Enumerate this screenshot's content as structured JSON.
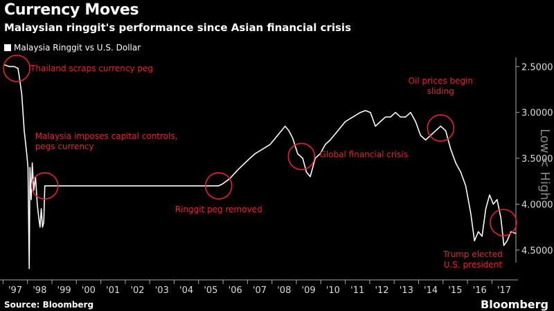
{
  "header": {
    "title": "Currency Moves",
    "subtitle": "Malaysian ringgit's performance since Asian financial crisis"
  },
  "footer": {
    "source": "Source: Bloomberg",
    "brand": "Bloomberg"
  },
  "colors": {
    "line": "#ffffff",
    "annotation": "#e8202f",
    "background": "#000000"
  },
  "chart_data": {
    "type": "line",
    "title": "Currency Moves",
    "subtitle": "Malaysian ringgit's performance since Asian financial crisis",
    "ylabel": "Low < High",
    "y_inverted": true,
    "ylim": [
      4.75,
      2.4
    ],
    "xlim": [
      1997.0,
      2017.4
    ],
    "yticks": [
      2.5,
      3.0,
      3.5,
      4.0,
      4.5
    ],
    "ytick_labels": [
      "2.5000",
      "3.0000",
      "3.5000",
      "4.0000",
      "4.5000"
    ],
    "xtick_labels": [
      "'97",
      "'98",
      "'99",
      "'00",
      "'01",
      "'02",
      "'03",
      "'04",
      "'05",
      "'06",
      "'07",
      "'08",
      "'09",
      "'10",
      "'11",
      "'12",
      "'13",
      "'14",
      "'15",
      "'16",
      "'17"
    ],
    "grid": false,
    "legend_position": "top-left",
    "series": [
      {
        "name": "Malaysia Ringgit vs U.S. Dollar",
        "points": [
          [
            1997.0,
            2.48
          ],
          [
            1997.2,
            2.5
          ],
          [
            1997.4,
            2.5
          ],
          [
            1997.55,
            2.52
          ],
          [
            1997.6,
            2.6
          ],
          [
            1997.7,
            2.8
          ],
          [
            1997.8,
            3.2
          ],
          [
            1997.9,
            3.45
          ],
          [
            1997.95,
            3.6
          ],
          [
            1998.0,
            4.7
          ],
          [
            1998.03,
            3.6
          ],
          [
            1998.08,
            3.95
          ],
          [
            1998.12,
            3.55
          ],
          [
            1998.18,
            3.85
          ],
          [
            1998.25,
            3.7
          ],
          [
            1998.32,
            4.0
          ],
          [
            1998.38,
            4.15
          ],
          [
            1998.43,
            4.25
          ],
          [
            1998.48,
            4.05
          ],
          [
            1998.53,
            4.25
          ],
          [
            1998.58,
            4.2
          ],
          [
            1998.62,
            3.8
          ],
          [
            2005.55,
            3.8
          ],
          [
            2005.7,
            3.78
          ],
          [
            2006.0,
            3.72
          ],
          [
            2006.3,
            3.63
          ],
          [
            2006.6,
            3.55
          ],
          [
            2006.8,
            3.5
          ],
          [
            2007.0,
            3.45
          ],
          [
            2007.3,
            3.4
          ],
          [
            2007.6,
            3.35
          ],
          [
            2007.9,
            3.25
          ],
          [
            2008.2,
            3.15
          ],
          [
            2008.35,
            3.2
          ],
          [
            2008.5,
            3.28
          ],
          [
            2008.7,
            3.45
          ],
          [
            2008.9,
            3.5
          ],
          [
            2009.05,
            3.65
          ],
          [
            2009.2,
            3.7
          ],
          [
            2009.4,
            3.5
          ],
          [
            2009.6,
            3.45
          ],
          [
            2009.8,
            3.35
          ],
          [
            2010.0,
            3.3
          ],
          [
            2010.3,
            3.2
          ],
          [
            2010.6,
            3.1
          ],
          [
            2010.9,
            3.05
          ],
          [
            2011.2,
            3.0
          ],
          [
            2011.4,
            2.98
          ],
          [
            2011.6,
            3.0
          ],
          [
            2011.8,
            3.15
          ],
          [
            2012.0,
            3.1
          ],
          [
            2012.2,
            3.05
          ],
          [
            2012.4,
            3.05
          ],
          [
            2012.6,
            3.0
          ],
          [
            2012.8,
            3.05
          ],
          [
            2013.0,
            3.05
          ],
          [
            2013.2,
            3.0
          ],
          [
            2013.4,
            3.1
          ],
          [
            2013.6,
            3.25
          ],
          [
            2013.8,
            3.3
          ],
          [
            2014.0,
            3.25
          ],
          [
            2014.2,
            3.2
          ],
          [
            2014.4,
            3.15
          ],
          [
            2014.6,
            3.2
          ],
          [
            2014.8,
            3.4
          ],
          [
            2015.0,
            3.55
          ],
          [
            2015.2,
            3.65
          ],
          [
            2015.4,
            3.8
          ],
          [
            2015.6,
            4.1
          ],
          [
            2015.75,
            4.4
          ],
          [
            2015.9,
            4.3
          ],
          [
            2016.05,
            4.35
          ],
          [
            2016.2,
            4.05
          ],
          [
            2016.35,
            3.9
          ],
          [
            2016.5,
            4.0
          ],
          [
            2016.65,
            3.95
          ],
          [
            2016.8,
            4.15
          ],
          [
            2016.92,
            4.45
          ],
          [
            2017.05,
            4.4
          ],
          [
            2017.2,
            4.3
          ],
          [
            2017.4,
            4.32
          ]
        ]
      }
    ],
    "annotations": [
      {
        "text": "Thailand scraps currency peg",
        "lines": [
          "Thailand scraps currency peg"
        ],
        "x": 1997.5,
        "y": 2.52
      },
      {
        "text": "Malaysia imposes capital controls, pegs currency",
        "lines": [
          "Malaysia imposes capital controls,",
          "pegs currency"
        ],
        "x": 1998.62,
        "y": 3.8
      },
      {
        "text": "Ringgit peg removed",
        "lines": [
          "Ringgit peg removed"
        ],
        "x": 2005.55,
        "y": 3.8
      },
      {
        "text": "Global financial crisis",
        "lines": [
          "Global financial crisis"
        ],
        "x": 2008.85,
        "y": 3.48
      },
      {
        "text": "Oil prices begin sliding",
        "lines": [
          "Oil prices begin",
          "sliding"
        ],
        "x": 2014.4,
        "y": 3.17
      },
      {
        "text": "Trump elected U.S. president",
        "lines": [
          "Trump elected",
          "U.S. president"
        ],
        "x": 2016.9,
        "y": 4.2
      }
    ]
  }
}
